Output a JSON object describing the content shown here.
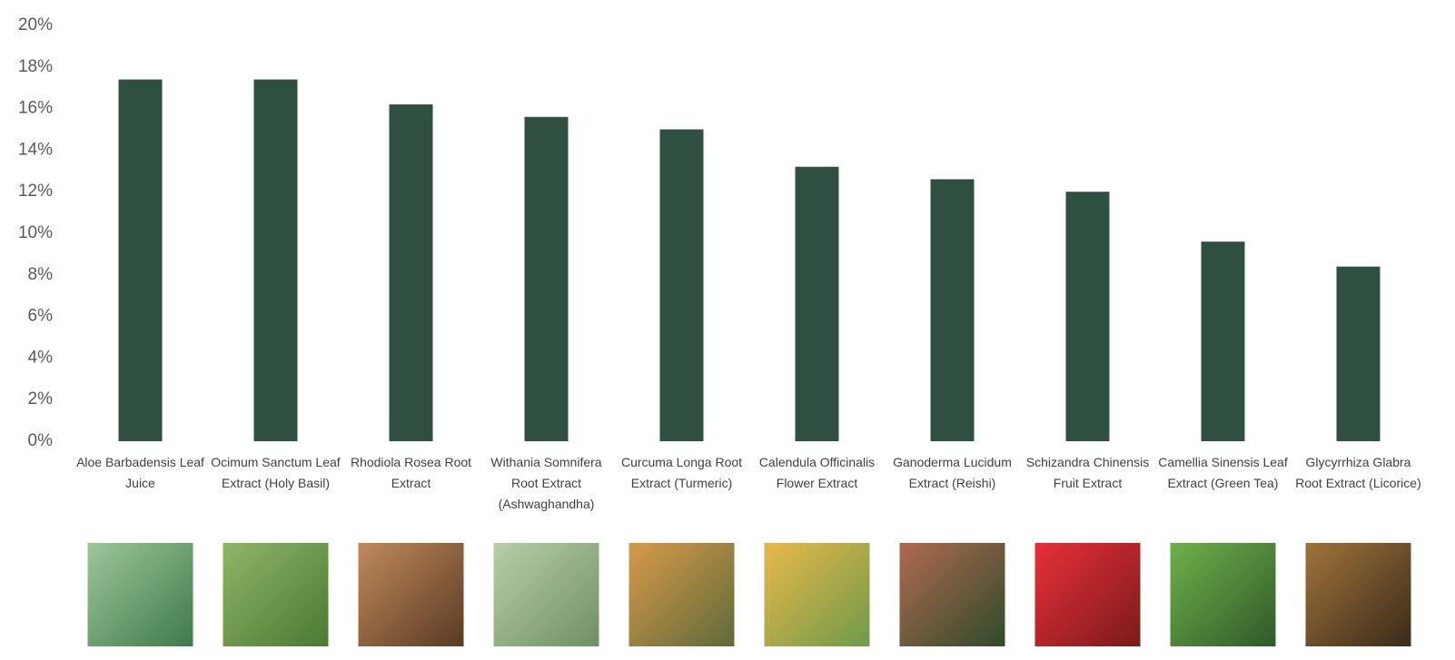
{
  "chart_data": {
    "type": "bar",
    "categories": [
      "Aloe Barbadensis Leaf Juice",
      "Ocimum Sanctum Leaf Extract (Holy Basil)",
      "Rhodiola Rosea Root Extract",
      "Withania Somnifera Root Extract (Ashwaghandha)",
      "Curcuma Longa Root Extract (Turmeric)",
      "Calendula Officinalis Flower Extract",
      "Ganoderma Lucidum Extract (Reishi)",
      "Schizandra Chinensis Fruit Extract",
      "Camellia Sinensis Leaf Extract (Green Tea)",
      "Glycyrrhiza Glabra Root Extract (Licorice)"
    ],
    "values": [
      17.4,
      17.4,
      16.2,
      15.6,
      15.0,
      13.2,
      12.6,
      12.0,
      9.6,
      8.4
    ],
    "color": "#2f5040",
    "ylim": [
      0,
      20
    ],
    "yticks": [
      {
        "value": 0,
        "label": "0%"
      },
      {
        "value": 2,
        "label": "2%"
      },
      {
        "value": 4,
        "label": "4%"
      },
      {
        "value": 6,
        "label": "6%"
      },
      {
        "value": 8,
        "label": "8%"
      },
      {
        "value": 10,
        "label": "10%"
      },
      {
        "value": 12,
        "label": "12%"
      },
      {
        "value": 14,
        "label": "14%"
      },
      {
        "value": 16,
        "label": "16%"
      },
      {
        "value": 18,
        "label": "18%"
      },
      {
        "value": 20,
        "label": "20%"
      }
    ],
    "grid": false
  }
}
